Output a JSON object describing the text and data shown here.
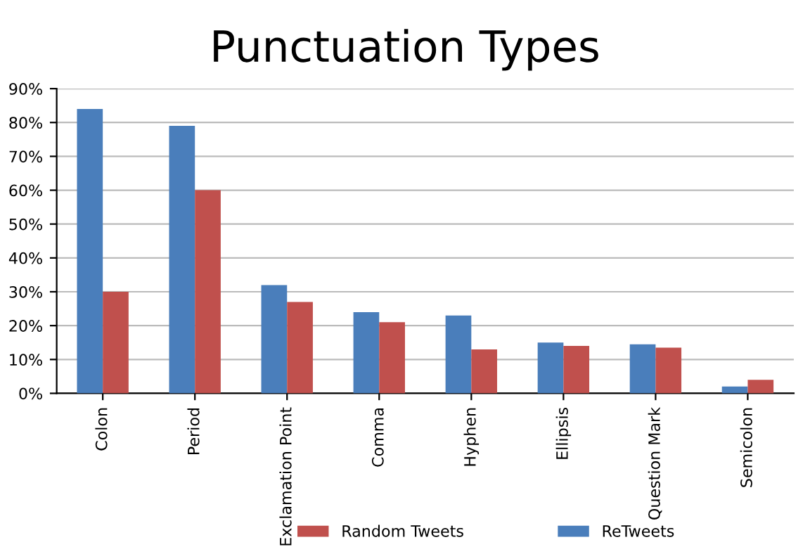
{
  "chart_data": {
    "type": "bar",
    "title": "Punctuation Types",
    "categories": [
      "Colon",
      "Period",
      "Exclamation Point",
      "Comma",
      "Hyphen",
      "Ellipsis",
      "Question Mark",
      "Semicolon"
    ],
    "series": [
      {
        "name": "ReTweets",
        "color": "#4a7ebb",
        "values": [
          84,
          79,
          32,
          24,
          23,
          15,
          14.5,
          2
        ]
      },
      {
        "name": "Random Tweets",
        "color": "#c0504d",
        "values": [
          30,
          60,
          27,
          21,
          13,
          14,
          13.5,
          4
        ]
      }
    ],
    "ylim": [
      0,
      90
    ],
    "yticks": [
      {
        "value": 0,
        "label": "0%"
      },
      {
        "value": 10,
        "label": "10%"
      },
      {
        "value": 20,
        "label": "20%"
      },
      {
        "value": 30,
        "label": "30%"
      },
      {
        "value": 40,
        "label": "40%"
      },
      {
        "value": 50,
        "label": "50%"
      },
      {
        "value": 60,
        "label": "60%"
      },
      {
        "value": 70,
        "label": "70%"
      },
      {
        "value": 80,
        "label": "80%"
      },
      {
        "value": 90,
        "label": "90%"
      }
    ],
    "grid": "y",
    "legend": "bottom"
  }
}
